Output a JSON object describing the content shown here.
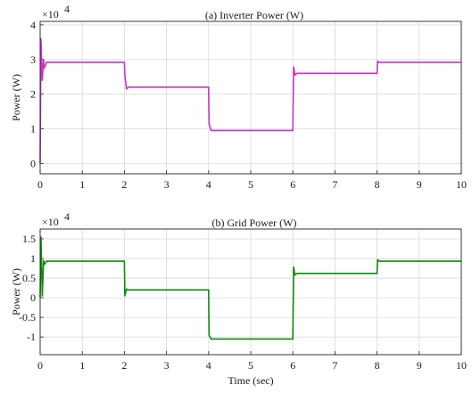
{
  "chart_data": [
    {
      "type": "line",
      "title": "(a) Inverter Power (W)",
      "xlabel": "",
      "ylabel": "Power (W)",
      "y_multiplier": "×10",
      "y_exponent": "4",
      "xlim": [
        0,
        10
      ],
      "ylim": [
        -0.3,
        4.1
      ],
      "x_ticks": [
        "0",
        "1",
        "2",
        "3",
        "4",
        "5",
        "6",
        "7",
        "8",
        "9",
        "10"
      ],
      "y_ticks": [
        "0",
        "1",
        "2",
        "3",
        "4"
      ],
      "grid": true,
      "color": "#c832c8",
      "series": [
        {
          "x": [
            0,
            0.02,
            0.05,
            0.08,
            0.1,
            0.15,
            2.0,
            2.01,
            2.05,
            2.1,
            4.0,
            4.01,
            4.06,
            4.1,
            6.0,
            6.02,
            6.05,
            6.1,
            8.0,
            8.01,
            8.05,
            10
          ],
          "y": [
            0,
            3.6,
            2.4,
            3.0,
            2.75,
            2.92,
            2.92,
            2.55,
            2.15,
            2.2,
            2.2,
            1.15,
            0.95,
            0.95,
            0.95,
            2.78,
            2.55,
            2.6,
            2.6,
            2.95,
            2.92,
            2.92
          ]
        }
      ]
    },
    {
      "type": "line",
      "title": "(b) Grid Power (W)",
      "xlabel": "Time (sec)",
      "ylabel": "Power (W)",
      "y_multiplier": "×10",
      "y_exponent": "4",
      "xlim": [
        0,
        10
      ],
      "ylim": [
        -1.45,
        1.75
      ],
      "x_ticks": [
        "0",
        "1",
        "2",
        "3",
        "4",
        "5",
        "6",
        "7",
        "8",
        "9",
        "10"
      ],
      "y_ticks": [
        "-1",
        "-0.5",
        "0",
        "0.5",
        "1",
        "1.5"
      ],
      "grid": true,
      "color": "#0c8a0c",
      "series": [
        {
          "x": [
            0,
            0.02,
            0.05,
            0.08,
            0.1,
            0.15,
            2.0,
            2.01,
            2.05,
            2.1,
            4.0,
            4.01,
            4.06,
            4.1,
            6.0,
            6.02,
            6.05,
            6.1,
            8.0,
            8.01,
            8.05,
            10
          ],
          "y": [
            0,
            1.55,
            0.05,
            0.95,
            0.85,
            0.93,
            0.93,
            0.05,
            0.22,
            0.2,
            0.2,
            -0.95,
            -1.05,
            -1.05,
            -1.05,
            0.78,
            0.58,
            0.62,
            0.62,
            0.97,
            0.93,
            0.93
          ]
        }
      ]
    }
  ]
}
